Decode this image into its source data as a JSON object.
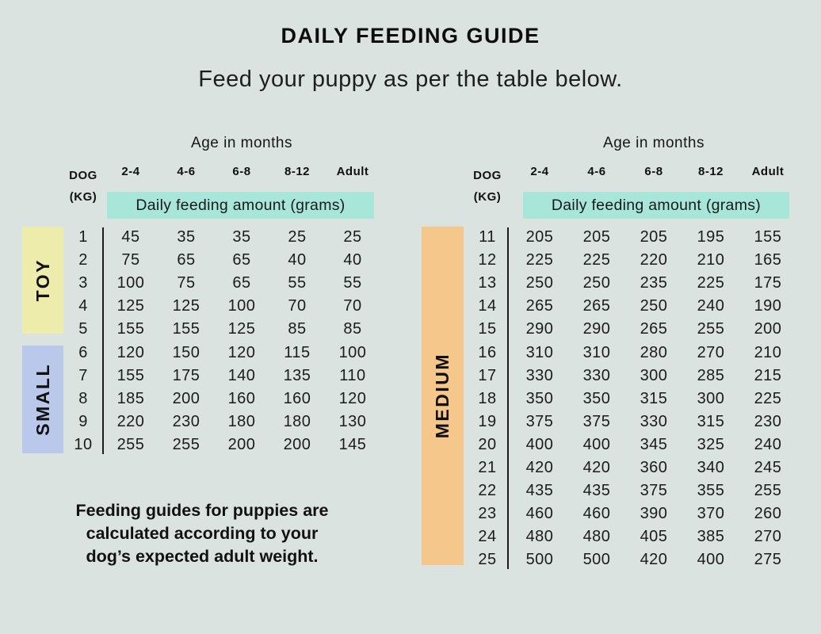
{
  "page": {
    "title": "DAILY FEEDING GUIDE",
    "subtitle": "Feed your puppy as per the table below.",
    "note": "Feeding guides for puppies are\ncalculated according to your\ndog’s expected adult weight."
  },
  "colors": {
    "background": "#dbe3e1",
    "amount_highlight": "#a8e6da",
    "toy_band": "#edecab",
    "small_band": "#b9c8eb",
    "medium_band": "#f6c78b"
  },
  "tables": [
    {
      "age_header": "Age in months",
      "dog_header": "DOG",
      "kg_header": "(KG)",
      "age_columns": [
        "2-4",
        "4-6",
        "6-8",
        "8-12",
        "Adult"
      ],
      "amount_header": "Daily feeding amount (grams)",
      "groups": [
        {
          "label": "TOY",
          "rows": [
            [
              1,
              45,
              35,
              35,
              25,
              25
            ],
            [
              2,
              75,
              65,
              65,
              40,
              40
            ],
            [
              3,
              100,
              75,
              65,
              55,
              55
            ],
            [
              4,
              125,
              125,
              100,
              70,
              70
            ],
            [
              5,
              155,
              155,
              125,
              85,
              85
            ]
          ]
        },
        {
          "label": "SMALL",
          "rows": [
            [
              6,
              120,
              150,
              120,
              115,
              100
            ],
            [
              7,
              155,
              175,
              140,
              135,
              110
            ],
            [
              8,
              185,
              200,
              160,
              160,
              120
            ],
            [
              9,
              220,
              230,
              180,
              180,
              130
            ],
            [
              10,
              255,
              255,
              200,
              200,
              145
            ]
          ]
        }
      ]
    },
    {
      "age_header": "Age in months",
      "dog_header": "DOG",
      "kg_header": "(KG)",
      "age_columns": [
        "2-4",
        "4-6",
        "6-8",
        "8-12",
        "Adult"
      ],
      "amount_header": "Daily feeding amount (grams)",
      "groups": [
        {
          "label": "MEDIUM",
          "rows": [
            [
              11,
              205,
              205,
              205,
              195,
              155
            ],
            [
              12,
              225,
              225,
              220,
              210,
              165
            ],
            [
              13,
              250,
              250,
              235,
              225,
              175
            ],
            [
              14,
              265,
              265,
              250,
              240,
              190
            ],
            [
              15,
              290,
              290,
              265,
              255,
              200
            ],
            [
              16,
              310,
              310,
              280,
              270,
              210
            ],
            [
              17,
              330,
              330,
              300,
              285,
              215
            ],
            [
              18,
              350,
              350,
              315,
              300,
              225
            ],
            [
              19,
              375,
              375,
              330,
              315,
              230
            ],
            [
              20,
              400,
              400,
              345,
              325,
              240
            ],
            [
              21,
              420,
              420,
              360,
              340,
              245
            ],
            [
              22,
              435,
              435,
              375,
              355,
              255
            ],
            [
              23,
              460,
              460,
              390,
              370,
              260
            ],
            [
              24,
              480,
              480,
              405,
              385,
              270
            ],
            [
              25,
              500,
              500,
              420,
              400,
              275
            ]
          ]
        }
      ]
    }
  ]
}
